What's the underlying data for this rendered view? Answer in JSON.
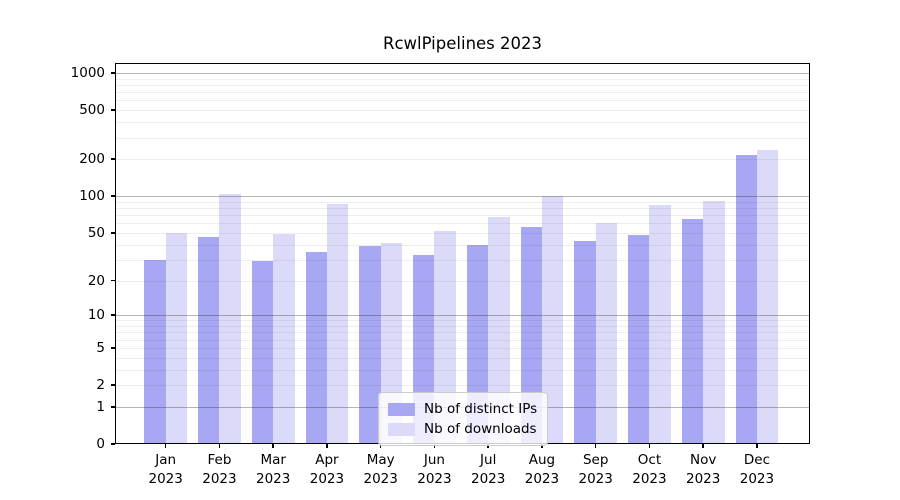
{
  "chart_data": {
    "type": "bar",
    "title": "RcwlPipelines 2023",
    "categories": [
      "Jan",
      "Feb",
      "Mar",
      "Apr",
      "May",
      "Jun",
      "Jul",
      "Aug",
      "Sep",
      "Oct",
      "Nov",
      "Dec"
    ],
    "year": "2023",
    "series": [
      {
        "name": "Nb of distinct IPs",
        "color": "#a7a7f3",
        "values": [
          30,
          46,
          29,
          35,
          39,
          33,
          40,
          56,
          43,
          48,
          65,
          215
        ]
      },
      {
        "name": "Nb of downloads",
        "color": "#dbdbf9",
        "values": [
          50,
          104,
          49,
          86,
          41,
          52,
          67,
          100,
          60,
          84,
          91,
          238
        ]
      }
    ],
    "yscale": "log1p",
    "ylabel": "",
    "xlabel": "",
    "y_ticks": [
      0,
      1,
      2,
      5,
      10,
      20,
      50,
      100,
      200,
      500,
      1000
    ],
    "y_minor_gridlines": [
      2,
      3,
      4,
      5,
      6,
      7,
      8,
      9,
      20,
      30,
      40,
      50,
      60,
      70,
      80,
      90,
      200,
      300,
      400,
      500,
      600,
      700,
      800,
      900
    ],
    "y_major_gridlines": [
      1,
      10,
      100,
      1000
    ],
    "ylim": [
      0,
      1205
    ],
    "grid": "on",
    "legend_position": "lower center"
  }
}
